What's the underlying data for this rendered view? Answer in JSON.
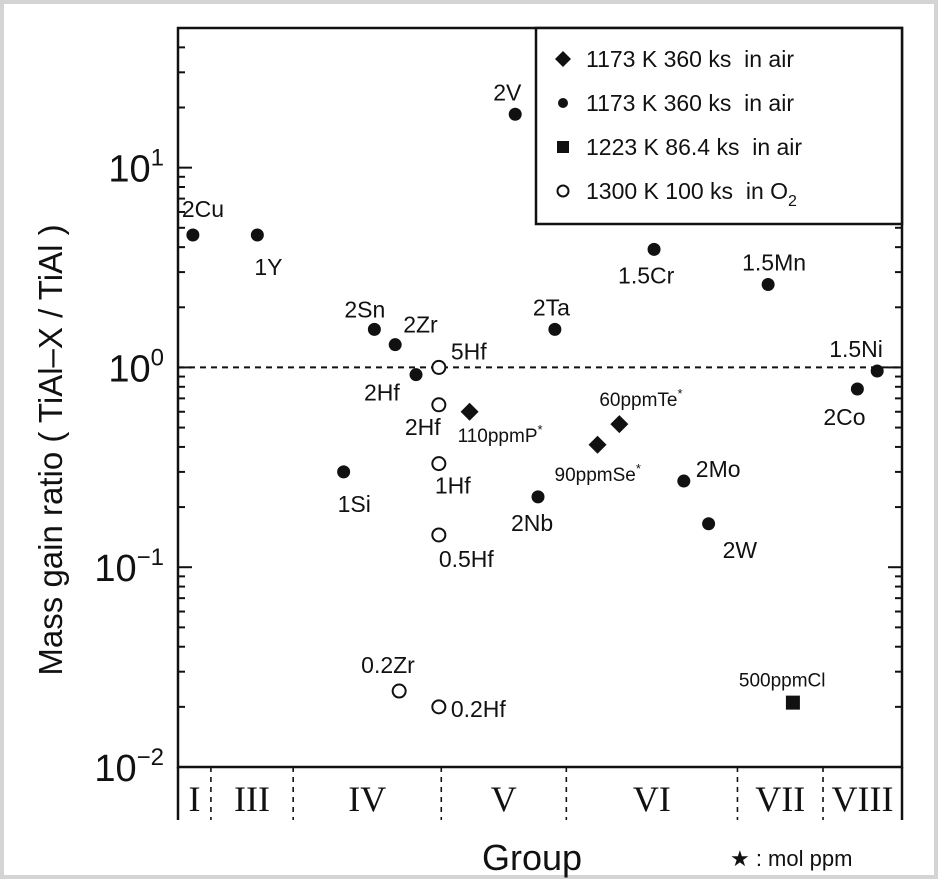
{
  "chart_data": {
    "type": "scatter",
    "ylabel": "Mass gain ratio ( TiAl–X / TiAl )",
    "xlabel": "Group",
    "footnote": "★ : mol ppm",
    "y_scale": "log",
    "ylim": [
      0.01,
      50
    ],
    "y_ticks": [
      {
        "value": 0.01,
        "base": "10",
        "exp": "−2"
      },
      {
        "value": 0.1,
        "base": "10",
        "exp": "−1"
      },
      {
        "value": 1,
        "base": "10",
        "exp": "0"
      },
      {
        "value": 10,
        "base": "10",
        "exp": "1"
      }
    ],
    "groups": [
      {
        "label": "I",
        "start": 0,
        "end": 0.5
      },
      {
        "label": "III",
        "start": 0.5,
        "end": 1.75
      },
      {
        "label": "IV",
        "start": 1.75,
        "end": 4.0
      },
      {
        "label": "V",
        "start": 4.0,
        "end": 5.9
      },
      {
        "label": "VI",
        "start": 5.9,
        "end": 8.5
      },
      {
        "label": "VII",
        "start": 8.5,
        "end": 9.8
      },
      {
        "label": "VIII",
        "start": 9.8,
        "end": 11.0
      }
    ],
    "reference_line": {
      "y": 1.0,
      "style": "dashed"
    },
    "legend": {
      "position": "top-right",
      "entries": [
        {
          "marker": "diamond",
          "text": "1173 K 360 ks  in air"
        },
        {
          "marker": "circle",
          "text": "1173 K 360 ks  in air"
        },
        {
          "marker": "square",
          "text": "1223 K 86.4 ks  in air"
        },
        {
          "marker": "open-circle",
          "text": "1300 K 100 ks  in O",
          "sub": "2"
        }
      ]
    },
    "series": [
      {
        "marker": "circle",
        "points": [
          {
            "label": "2Cu",
            "x": 0.15,
            "y": 4.6
          },
          {
            "label": "1Y",
            "x": 0.8,
            "y": 4.6
          },
          {
            "label": "2Sn",
            "x": 1.98,
            "y": 1.55
          },
          {
            "label": "2Zr",
            "x": 2.19,
            "y": 1.3
          },
          {
            "label": "2Hf",
            "x": 2.4,
            "y": 0.92
          },
          {
            "label": "1Si",
            "x": 1.67,
            "y": 0.3
          },
          {
            "label": "2V",
            "x": 3.4,
            "y": 18.5
          },
          {
            "label": "2Ta",
            "x": 3.8,
            "y": 1.55
          },
          {
            "label": "2Nb",
            "x": 3.63,
            "y": 0.225
          },
          {
            "label": "1.5Cr",
            "x": 4.8,
            "y": 3.9
          },
          {
            "label": "2Mo",
            "x": 5.1,
            "y": 0.27
          },
          {
            "label": "2W",
            "x": 5.35,
            "y": 0.165
          },
          {
            "label": "1.5Mn",
            "x": 5.95,
            "y": 2.6
          },
          {
            "label": "2Co",
            "x": 6.85,
            "y": 0.78
          },
          {
            "label": "1.5Ni",
            "x": 7.05,
            "y": 0.96
          }
        ]
      },
      {
        "marker": "diamond",
        "points": [
          {
            "label": "110ppmP",
            "star": "*",
            "x": 2.94,
            "y": 0.6
          },
          {
            "label": "90ppmSe",
            "star": "*",
            "x": 4.23,
            "y": 0.41
          },
          {
            "label": "60ppmTe",
            "star": "*",
            "x": 4.45,
            "y": 0.52
          }
        ]
      },
      {
        "marker": "square",
        "points": [
          {
            "label": "500ppmCl",
            "x": 6.2,
            "y": 0.021
          }
        ]
      },
      {
        "marker": "open-circle",
        "points": [
          {
            "label": "5Hf",
            "x": 2.63,
            "y": 1.0
          },
          {
            "label": "2Hf",
            "x": 2.63,
            "y": 0.65
          },
          {
            "label": "1Hf",
            "x": 2.63,
            "y": 0.33
          },
          {
            "label": "0.5Hf",
            "x": 2.63,
            "y": 0.145
          },
          {
            "label": "0.2Zr",
            "x": 2.23,
            "y": 0.024
          },
          {
            "label": "0.2Hf",
            "x": 2.63,
            "y": 0.02
          }
        ]
      }
    ]
  }
}
